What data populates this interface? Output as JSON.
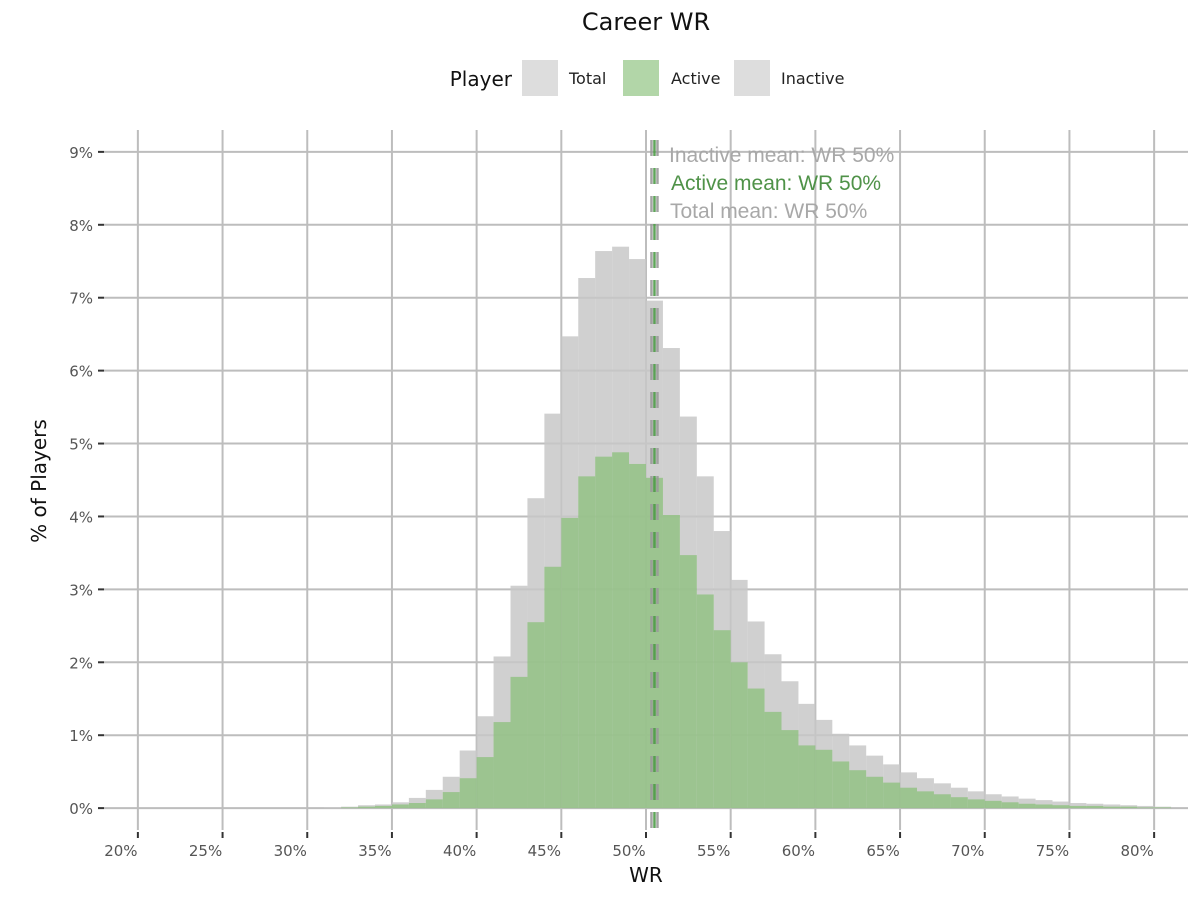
{
  "chart_data": {
    "type": "bar",
    "title": "Career WR",
    "xlabel": "WR",
    "ylabel": "% of Players",
    "xlim": [
      0.18,
      0.82
    ],
    "ylim": [
      -0.3,
      9.3
    ],
    "x_ticks": [
      0.2,
      0.25,
      0.3,
      0.35,
      0.4,
      0.45,
      0.5,
      0.55,
      0.6,
      0.65,
      0.7,
      0.75,
      0.8
    ],
    "x_tick_labels": [
      "20%",
      "25%",
      "30%",
      "35%",
      "40%",
      "45%",
      "50%",
      "55%",
      "60%",
      "65%",
      "70%",
      "75%",
      "80%"
    ],
    "y_ticks": [
      0,
      1,
      2,
      3,
      4,
      5,
      6,
      7,
      8,
      9
    ],
    "y_tick_labels": [
      "0%",
      "1%",
      "2%",
      "3%",
      "4%",
      "5%",
      "6%",
      "7%",
      "8%",
      "9%"
    ],
    "grid": true,
    "legend": {
      "title": "Player",
      "position": "top",
      "entries": [
        {
          "label": "Total",
          "color": "#dddddd"
        },
        {
          "label": "Active",
          "color": "#b2d6a8"
        },
        {
          "label": "Inactive",
          "color": "#dddddd"
        }
      ]
    },
    "bin_width": 0.01,
    "bin_starts": [
      0.31,
      0.32,
      0.33,
      0.34,
      0.35,
      0.36,
      0.37,
      0.38,
      0.39,
      0.4,
      0.41,
      0.42,
      0.43,
      0.44,
      0.45,
      0.46,
      0.47,
      0.48,
      0.49,
      0.5,
      0.51,
      0.52,
      0.53,
      0.54,
      0.55,
      0.56,
      0.57,
      0.58,
      0.59,
      0.6,
      0.61,
      0.62,
      0.63,
      0.64,
      0.65,
      0.66,
      0.67,
      0.68,
      0.69,
      0.7,
      0.71,
      0.72,
      0.73,
      0.74,
      0.75,
      0.76,
      0.77,
      0.78,
      0.79,
      0.8
    ],
    "series": [
      {
        "name": "Total",
        "color": "#c8c8c8",
        "values": [
          0.01,
          0.02,
          0.04,
          0.05,
          0.08,
          0.14,
          0.25,
          0.43,
          0.79,
          1.26,
          2.08,
          3.05,
          4.25,
          5.41,
          6.47,
          7.27,
          7.64,
          7.7,
          7.53,
          6.96,
          6.31,
          5.37,
          4.55,
          3.8,
          3.13,
          2.56,
          2.11,
          1.74,
          1.43,
          1.21,
          1.02,
          0.86,
          0.72,
          0.6,
          0.49,
          0.41,
          0.34,
          0.28,
          0.23,
          0.19,
          0.16,
          0.13,
          0.11,
          0.09,
          0.07,
          0.06,
          0.05,
          0.04,
          0.03,
          0.02
        ]
      },
      {
        "name": "Active",
        "color": "#8fc07f",
        "values": [
          0.0,
          0.01,
          0.02,
          0.03,
          0.05,
          0.07,
          0.12,
          0.22,
          0.41,
          0.7,
          1.18,
          1.8,
          2.55,
          3.31,
          3.98,
          4.55,
          4.82,
          4.88,
          4.72,
          4.53,
          4.02,
          3.47,
          2.93,
          2.44,
          2.0,
          1.64,
          1.32,
          1.07,
          0.86,
          0.8,
          0.64,
          0.52,
          0.43,
          0.35,
          0.28,
          0.23,
          0.19,
          0.15,
          0.12,
          0.1,
          0.08,
          0.06,
          0.05,
          0.04,
          0.03,
          0.03,
          0.02,
          0.02,
          0.01,
          0.01
        ]
      }
    ],
    "mean_lines": [
      {
        "name": "Inactive",
        "x": 0.505,
        "color": "#9a9a9a",
        "label": "Inactive mean: WR 50%",
        "label_color": "#a8a8a8"
      },
      {
        "name": "Active",
        "x": 0.505,
        "color": "#4e9a48",
        "label": "Active mean: WR 50%",
        "label_color": "#4f9248"
      },
      {
        "name": "Total",
        "x": 0.505,
        "color": "#9a9a9a",
        "label": "Total mean: WR 50%",
        "label_color": "#a8a8a8"
      }
    ]
  }
}
